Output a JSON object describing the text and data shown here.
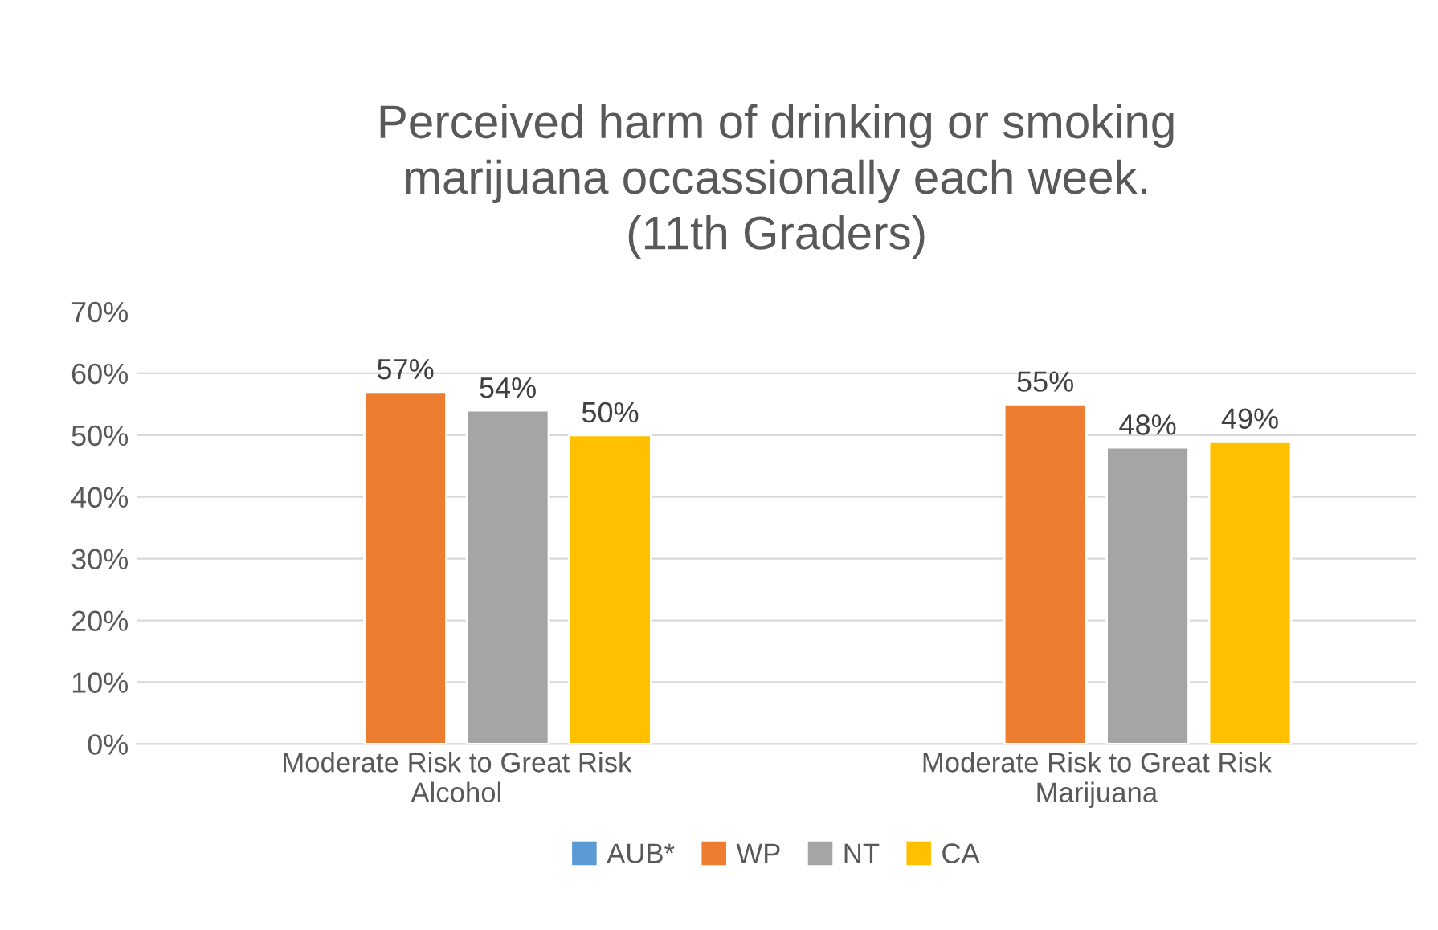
{
  "chart_data": {
    "type": "bar",
    "title": "Perceived harm of drinking or smoking\nmarijuana occassionally each week.\n(11th Graders)",
    "categories": [
      "Moderate Risk to Great Risk\nAlcohol",
      "Moderate Risk to Great Risk\nMarijuana"
    ],
    "series": [
      {
        "name": "AUB*",
        "color": "#5b9bd5",
        "values": [
          null,
          null
        ],
        "value_labels": [
          null,
          null
        ]
      },
      {
        "name": "WP",
        "color": "#ed7d31",
        "values": [
          57,
          55
        ],
        "value_labels": [
          "57%",
          "55%"
        ]
      },
      {
        "name": "NT",
        "color": "#a5a5a5",
        "values": [
          54,
          48
        ],
        "value_labels": [
          "54%",
          "48%"
        ]
      },
      {
        "name": "CA",
        "color": "#ffc000",
        "values": [
          50,
          49
        ],
        "value_labels": [
          "50%",
          "49%"
        ]
      }
    ],
    "ylim": [
      0,
      70
    ],
    "yticks": [
      {
        "value": 0,
        "label": "0%"
      },
      {
        "value": 10,
        "label": "10%"
      },
      {
        "value": 20,
        "label": "20%"
      },
      {
        "value": 30,
        "label": "30%"
      },
      {
        "value": 40,
        "label": "40%"
      },
      {
        "value": 50,
        "label": "50%"
      },
      {
        "value": 60,
        "label": "60%"
      },
      {
        "value": 70,
        "label": "70%"
      }
    ],
    "grid": "y",
    "legend": "bottom"
  }
}
